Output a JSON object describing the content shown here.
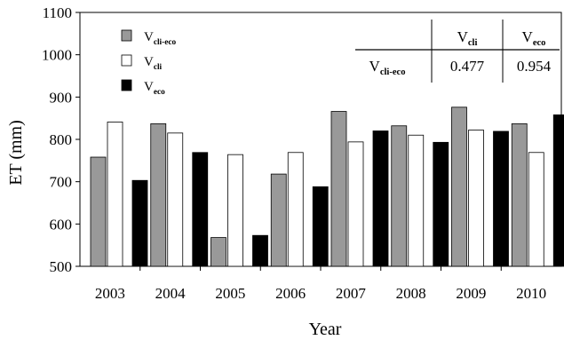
{
  "chart_data": {
    "type": "bar",
    "xlabel": "Year",
    "ylabel": "ET (mm)",
    "ylim": [
      500,
      1100
    ],
    "yticks": [
      500,
      600,
      700,
      800,
      900,
      1000,
      1100
    ],
    "categories": [
      "2003",
      "2004",
      "2005",
      "2006",
      "2007",
      "2008",
      "2009",
      "2010"
    ],
    "series": [
      {
        "name": "V",
        "subscript": "cli-eco",
        "color": "#999999",
        "values": [
          758,
          837,
          568,
          718,
          866,
          832,
          876,
          837
        ]
      },
      {
        "name": "V",
        "subscript": "cli",
        "color": "#ffffff",
        "values": [
          841,
          815,
          764,
          769,
          794,
          810,
          822,
          769
        ]
      },
      {
        "name": "V",
        "subscript": "eco",
        "color": "#000000",
        "values": [
          703,
          769,
          573,
          688,
          820,
          793,
          819,
          858
        ]
      }
    ],
    "legend_position": "top-left",
    "grid": false,
    "annotation_table": {
      "col_headers": [
        {
          "main": "V",
          "sub": "cli"
        },
        {
          "main": "V",
          "sub": "eco"
        }
      ],
      "row_header": {
        "main": "V",
        "sub": "cli-eco"
      },
      "values": [
        "0.477",
        "0.954"
      ]
    }
  }
}
